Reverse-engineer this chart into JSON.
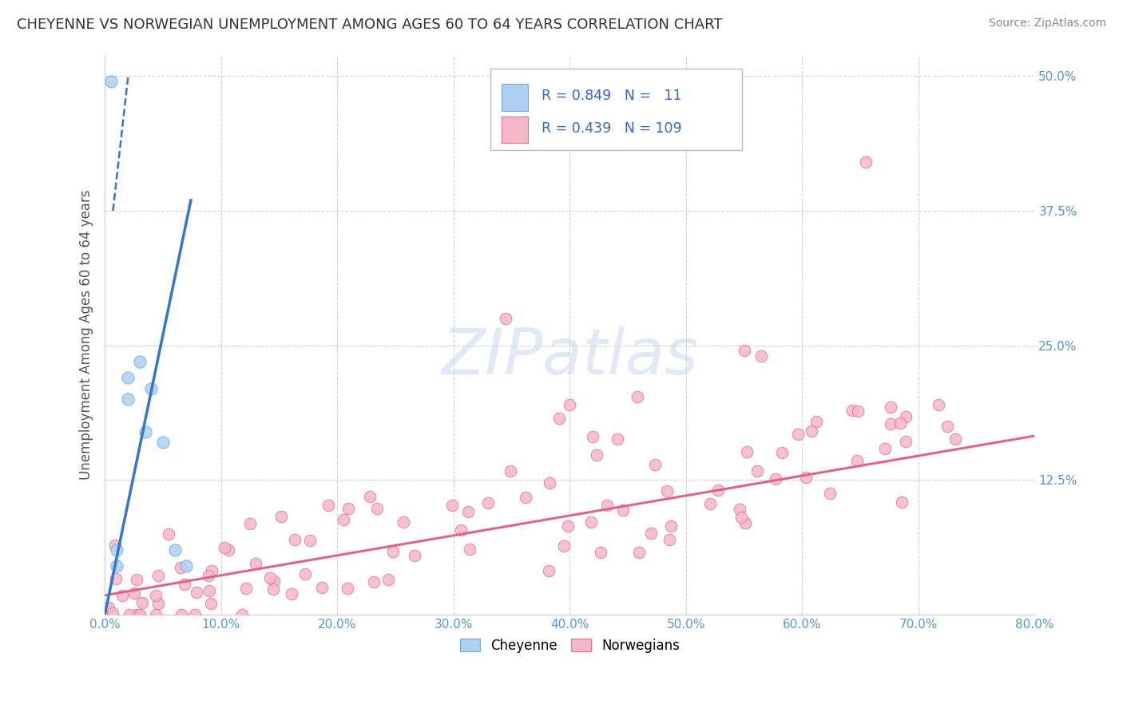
{
  "title": "CHEYENNE VS NORWEGIAN UNEMPLOYMENT AMONG AGES 60 TO 64 YEARS CORRELATION CHART",
  "source": "Source: ZipAtlas.com",
  "ylabel": "Unemployment Among Ages 60 to 64 years",
  "xlim": [
    0.0,
    0.8
  ],
  "ylim": [
    0.0,
    0.52
  ],
  "xticks": [
    0.0,
    0.1,
    0.2,
    0.3,
    0.4,
    0.5,
    0.6,
    0.7,
    0.8
  ],
  "xticklabels": [
    "0.0%",
    "10.0%",
    "20.0%",
    "30.0%",
    "40.0%",
    "50.0%",
    "60.0%",
    "70.0%",
    "80.0%"
  ],
  "yticks": [
    0.0,
    0.125,
    0.25,
    0.375,
    0.5
  ],
  "yticklabels": [
    "",
    "12.5%",
    "25.0%",
    "37.5%",
    "50.0%"
  ],
  "cheyenne_color": "#aed0f0",
  "cheyenne_edge": "#70aadd",
  "norwegian_color": "#f5b8c8",
  "norwegian_edge": "#e87090",
  "blue_line_color": "#3377cc",
  "pink_line_color": "#dd6688",
  "legend_label1": "Cheyenne",
  "legend_label2": "Norwegians",
  "watermark_color": "#c8d8ee",
  "background_color": "#ffffff",
  "grid_color": "#cccccc",
  "tick_color": "#5599cc",
  "title_color": "#333333",
  "source_color": "#888888",
  "ylabel_color": "#555555"
}
